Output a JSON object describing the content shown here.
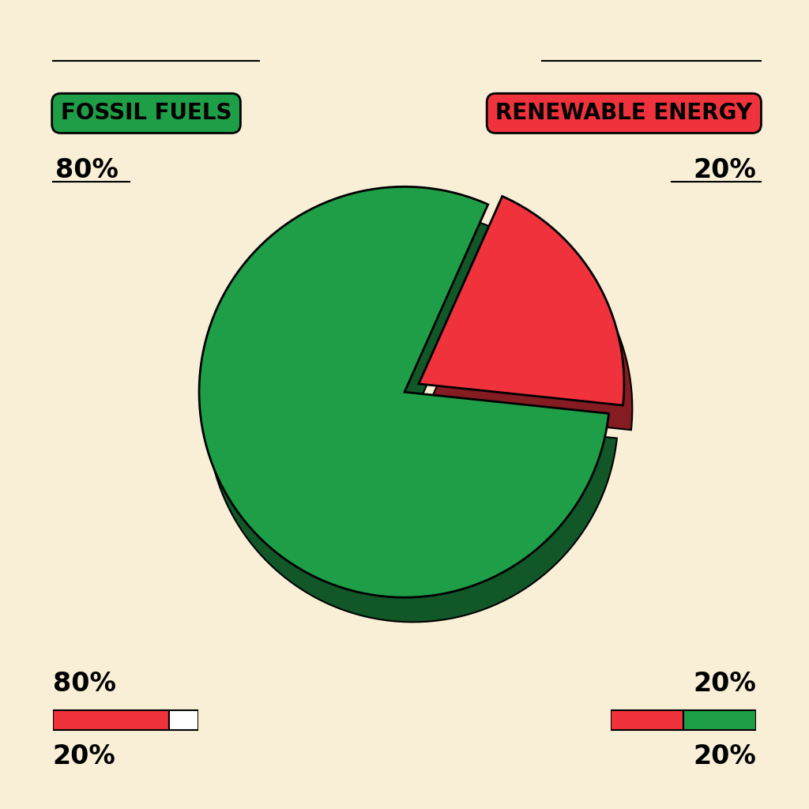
{
  "chart_data": {
    "type": "pie",
    "categories": [
      "FOSSIL FUELS",
      "RENEWABLE ENERGY"
    ],
    "values": [
      80,
      20
    ],
    "value_labels": [
      "80%",
      "20%"
    ],
    "colors": [
      "#1f9e48",
      "#f0323c"
    ],
    "data_labels": true,
    "gauges": [
      {
        "values": [
          80,
          20
        ],
        "value_labels": [
          "80%",
          "20%"
        ],
        "colors": [
          "#f0323c",
          "#ffffff"
        ]
      },
      {
        "values": [
          20,
          20
        ],
        "value_labels": [
          "20%",
          "20%"
        ],
        "colors": [
          "#f0323c",
          "#1f9e48"
        ]
      }
    ]
  }
}
